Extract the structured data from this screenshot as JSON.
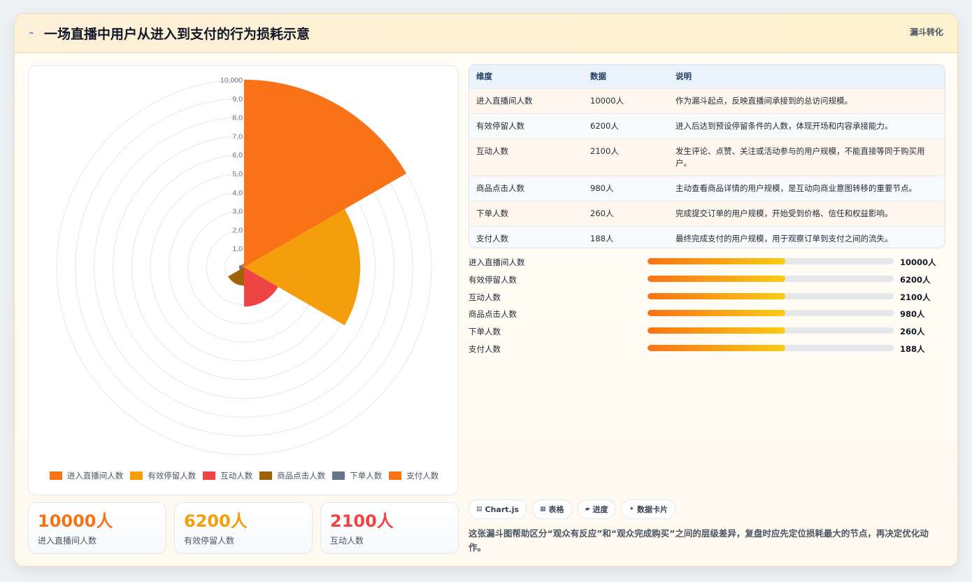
{
  "header": {
    "title": "一场直播中用户从进入到支付的行为损耗示意",
    "tag": "漏斗转化",
    "icon": "lightning-icon"
  },
  "chart_data": {
    "type": "polarArea",
    "categories": [
      "进入直播间人数",
      "有效停留人数",
      "互动人数",
      "商品点击人数",
      "下单人数",
      "支付人数"
    ],
    "values": [
      10000,
      6200,
      2100,
      980,
      260,
      188
    ],
    "colors": [
      "#f97316",
      "#f59e0b",
      "#ef4444",
      "#a16207",
      "#64748b",
      "#f97316"
    ],
    "r_ticks": [
      "1,0",
      "2,0",
      "3,0",
      "4,0",
      "5,0",
      "6,0",
      "7,0",
      "8,0",
      "9,0",
      "10,000"
    ],
    "r_max": 10000,
    "grid": true,
    "legend": "bottom"
  },
  "stats": [
    {
      "value": "10000人",
      "label": "进入直播间人数",
      "color": "#f97316"
    },
    {
      "value": "6200人",
      "label": "有效停留人数",
      "color": "#f59e0b"
    },
    {
      "value": "2100人",
      "label": "互动人数",
      "color": "#ef4444"
    }
  ],
  "table": {
    "headers": [
      "维度",
      "数据",
      "说明"
    ],
    "rows": [
      [
        "进入直播间人数",
        "10000人",
        "作为漏斗起点，反映直播间承接到的总访问规模。"
      ],
      [
        "有效停留人数",
        "6200人",
        "进入后达到预设停留条件的人数，体现开场和内容承接能力。"
      ],
      [
        "互动人数",
        "2100人",
        "发生评论、点赞、关注或活动参与的用户规模，不能直接等同于购买用户。"
      ],
      [
        "商品点击人数",
        "980人",
        "主动查看商品详情的用户规模，是互动向商业意图转移的重要节点。"
      ],
      [
        "下单人数",
        "260人",
        "完成提交订单的用户规模，开始受到价格、信任和权益影响。"
      ],
      [
        "支付人数",
        "188人",
        "最终完成支付的用户规模，用于观察订单到支付之间的流失。"
      ]
    ]
  },
  "progress": [
    {
      "label": "进入直播间人数",
      "value": "10000人",
      "fill": 0.56
    },
    {
      "label": "有效停留人数",
      "value": "6200人",
      "fill": 0.56
    },
    {
      "label": "互动人数",
      "value": "2100人",
      "fill": 0.56
    },
    {
      "label": "商品点击人数",
      "value": "980人",
      "fill": 0.56
    },
    {
      "label": "下单人数",
      "value": "260人",
      "fill": 0.56
    },
    {
      "label": "支付人数",
      "value": "188人",
      "fill": 0.56
    }
  ],
  "tags": [
    {
      "icon": "chart-icon",
      "glyph": "▤",
      "label": "Chart.js"
    },
    {
      "icon": "table-icon",
      "glyph": "▦",
      "label": "表格"
    },
    {
      "icon": "progress-icon",
      "glyph": "▰",
      "label": "进度"
    },
    {
      "icon": "sparkle-icon",
      "glyph": "✦",
      "label": "数据卡片"
    }
  ],
  "footnote": "这张漏斗图帮助区分“观众有反应”和“观众完成购买”之间的层级差异，复盘时应先定位损耗最大的节点，再决定优化动作。"
}
